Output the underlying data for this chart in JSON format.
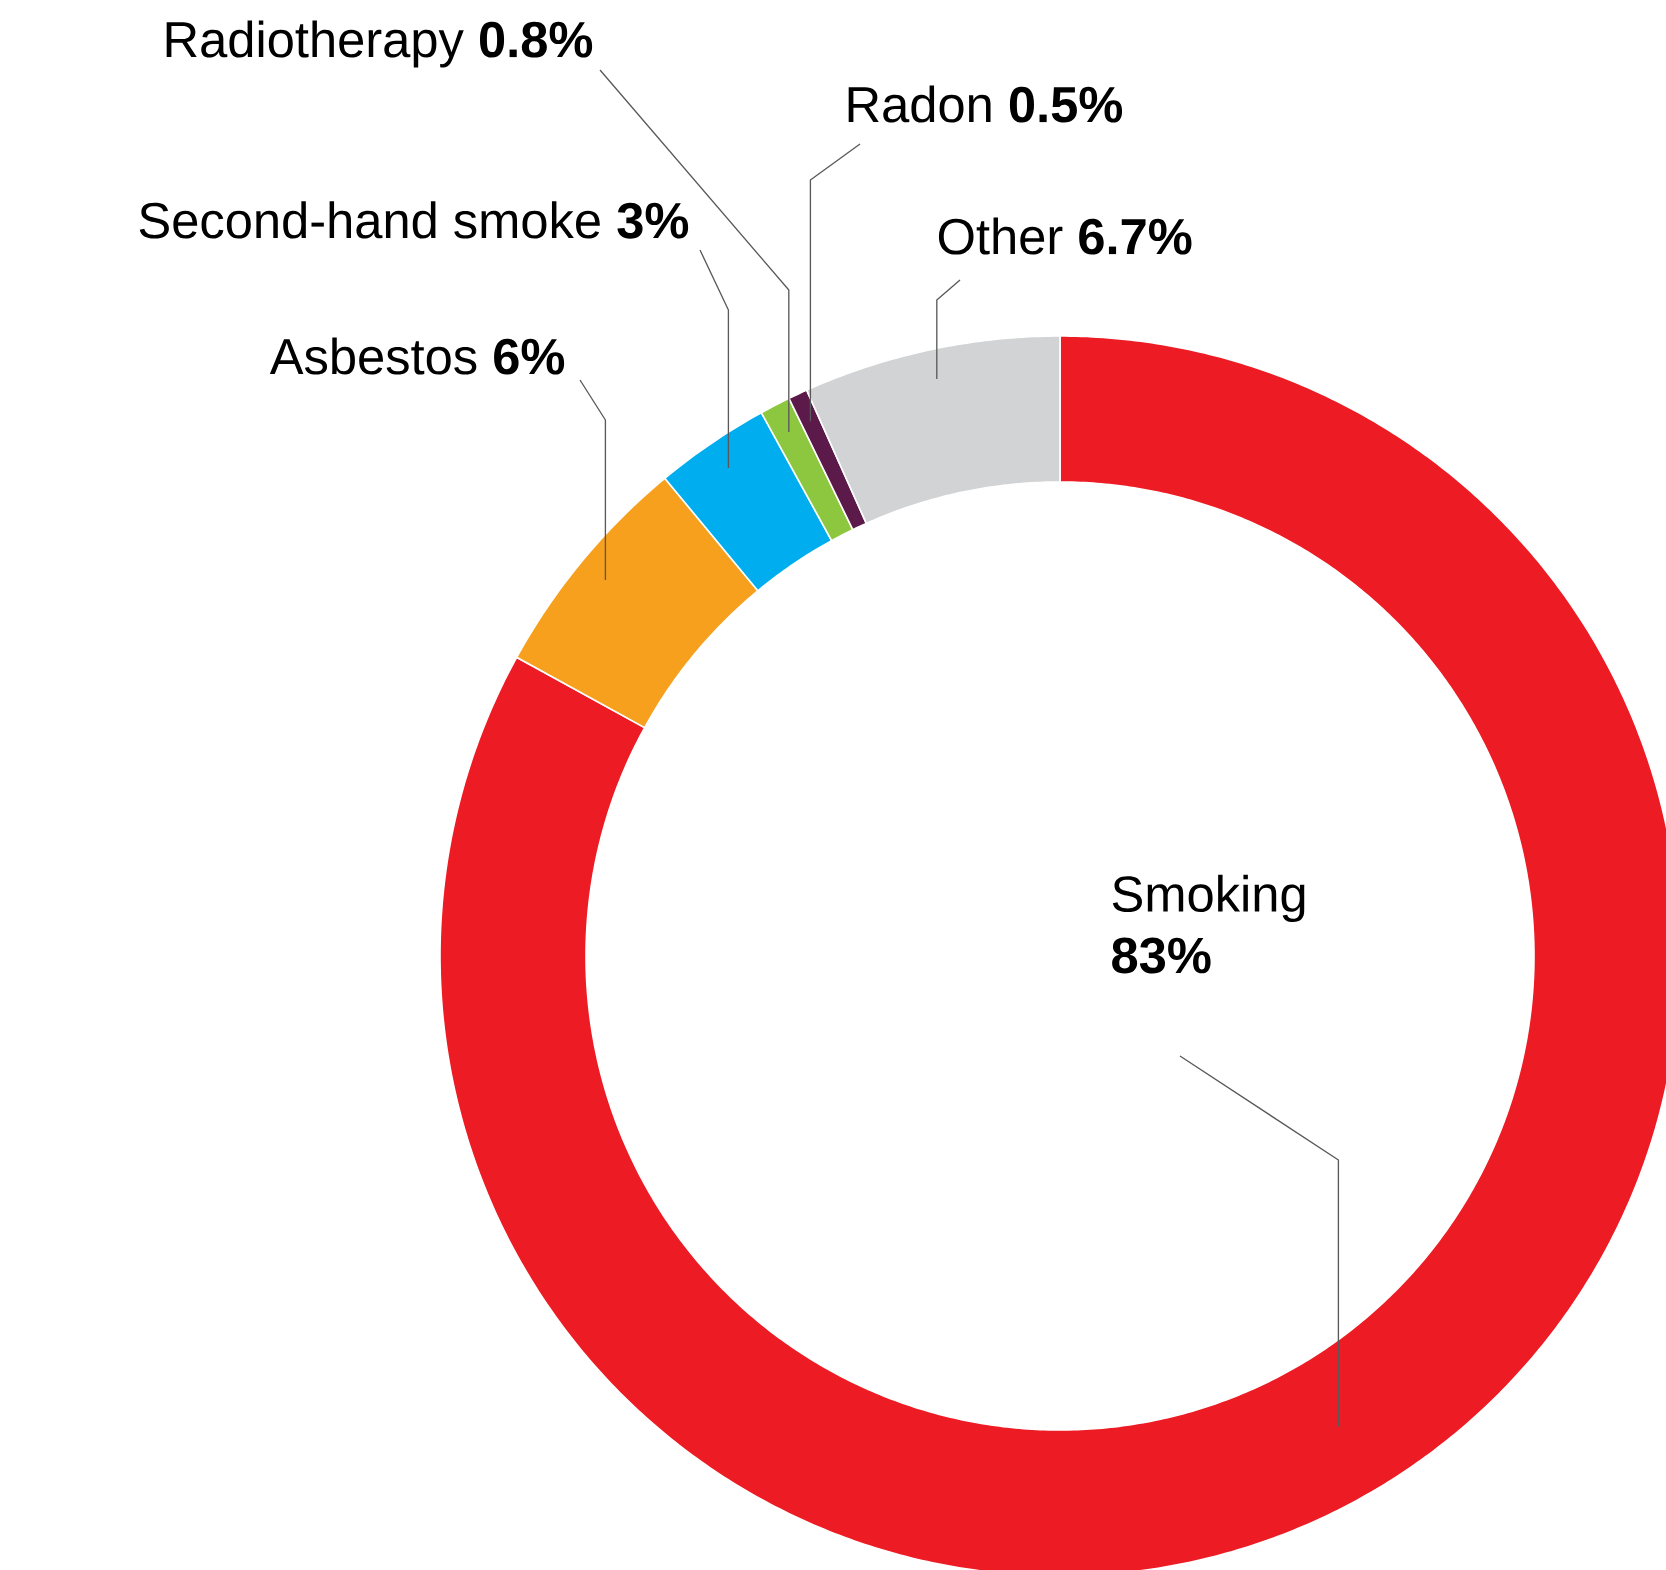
{
  "chart_data": {
    "type": "donut",
    "categories": [
      "Smoking",
      "Asbestos",
      "Second-hand smoke",
      "Radiotherapy",
      "Radon",
      "Other"
    ],
    "values": [
      83,
      6,
      3,
      0.8,
      0.5,
      6.7
    ],
    "value_labels": [
      "83%",
      "6%",
      "3%",
      "0.8%",
      "0.5%",
      "6.7%"
    ],
    "colors": [
      "#ed1c24",
      "#f7a01e",
      "#00aeef",
      "#8dc63f",
      "#5c1a4a",
      "#d1d3d4"
    ]
  }
}
